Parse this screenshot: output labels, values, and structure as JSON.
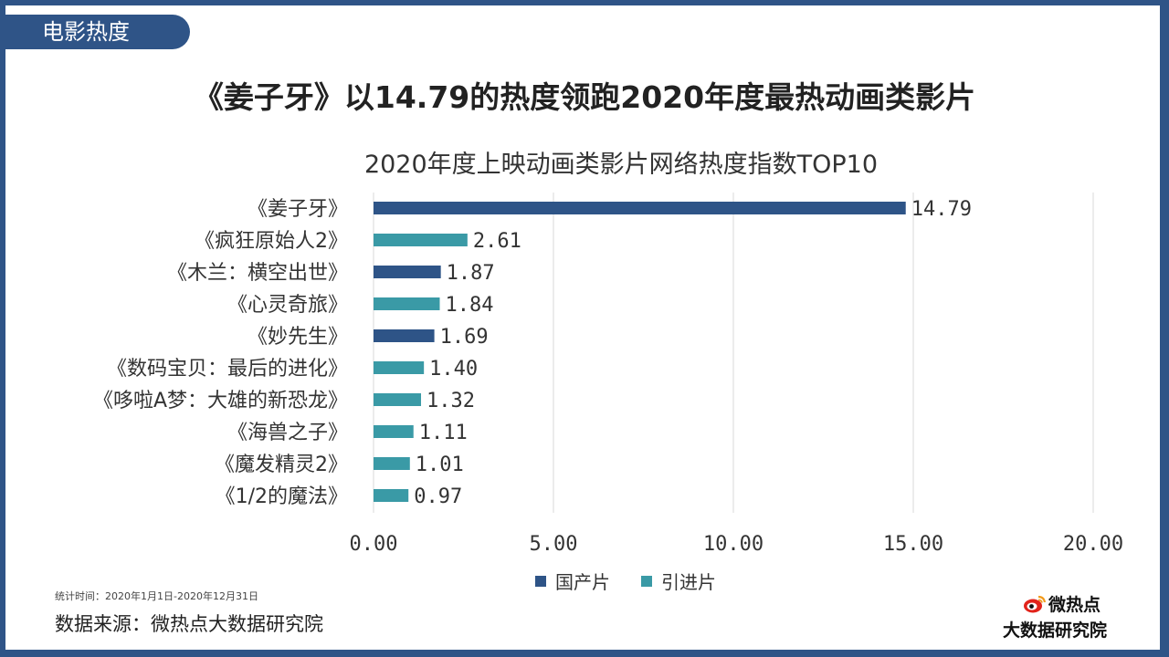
{
  "section_tab": "电影热度",
  "headline": "《姜子牙》以14.79的热度领跑2020年度最热动画类影片",
  "footer": {
    "stat_time": "统计时间：2020年1月1日-2020年12月31日",
    "source": "数据来源：微热点大数据研究院"
  },
  "brand": {
    "line1": "微热点",
    "line2": "大数据研究院"
  },
  "colors": {
    "frame": "#2f5487",
    "domestic": "#2e5487",
    "imported": "#3a9aa6",
    "grid": "#d9d9d9"
  },
  "chart_data": {
    "type": "bar",
    "orientation": "horizontal",
    "title": "2020年度上映动画类影片网络热度指数TOP10",
    "xlabel": "",
    "ylabel": "",
    "xlim": [
      0,
      20
    ],
    "xticks": [
      "0.00",
      "5.00",
      "10.00",
      "15.00",
      "20.00"
    ],
    "grid": true,
    "legend_position": "bottom",
    "categories": [
      "《姜子牙》",
      "《疯狂原始人2》",
      "《木兰：横空出世》",
      "《心灵奇旅》",
      "《妙先生》",
      "《数码宝贝：最后的进化》",
      "《哆啦A梦：大雄的新恐龙》",
      "《海兽之子》",
      "《魔发精灵2》",
      "《1/2的魔法》"
    ],
    "values": [
      14.79,
      2.61,
      1.87,
      1.84,
      1.69,
      1.4,
      1.32,
      1.11,
      1.01,
      0.97
    ],
    "value_labels": [
      "14.79",
      "2.61",
      "1.87",
      "1.84",
      "1.69",
      "1.40",
      "1.32",
      "1.11",
      "1.01",
      "0.97"
    ],
    "groups": [
      "国产片",
      "引进片",
      "国产片",
      "引进片",
      "国产片",
      "引进片",
      "引进片",
      "引进片",
      "引进片",
      "引进片"
    ],
    "legend": [
      {
        "name": "国产片",
        "color": "#2e5487"
      },
      {
        "name": "引进片",
        "color": "#3a9aa6"
      }
    ]
  }
}
